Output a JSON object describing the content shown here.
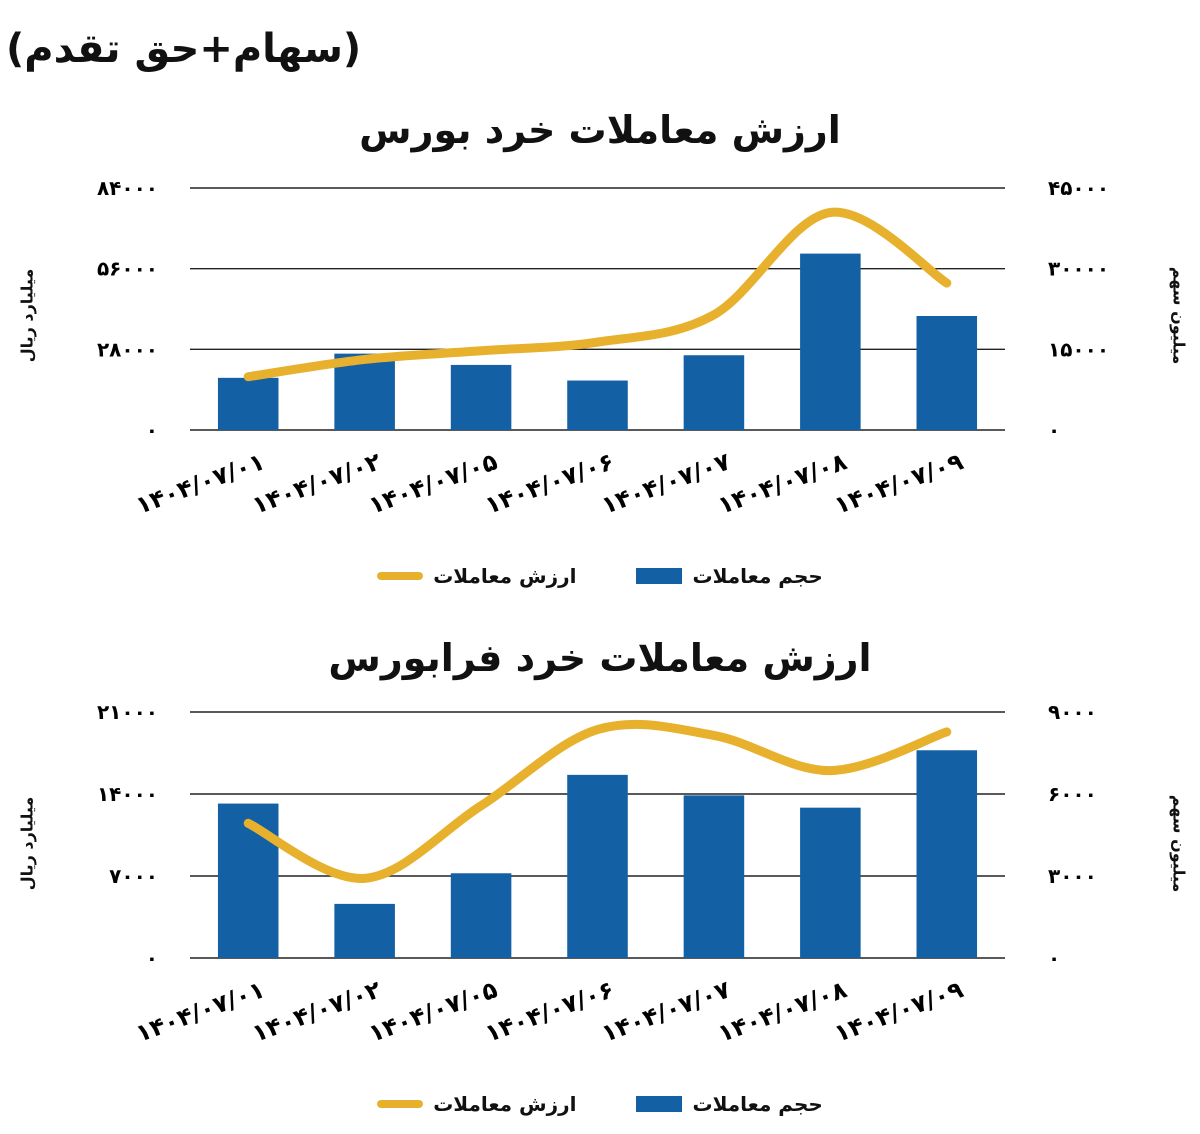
{
  "header": {
    "note": "(سهام+حق تقدم)"
  },
  "legend": {
    "bar": "حجم معاملات",
    "line": "ارزش معاملات"
  },
  "chart_data": [
    {
      "type": "bar",
      "title": "ارزش معاملات خرد بورس",
      "categories": [
        "۱۴۰۴/۰۷/۰۱",
        "۱۴۰۴/۰۷/۰۲",
        "۱۴۰۴/۰۷/۰۵",
        "۱۴۰۴/۰۷/۰۶",
        "۱۴۰۴/۰۷/۰۷",
        "۱۴۰۴/۰۷/۰۸",
        "۱۴۰۴/۰۷/۰۹"
      ],
      "ylabel": "میلیارد ریال",
      "y2label": "میلیون سهم",
      "ylim": [
        0,
        84000
      ],
      "y2lim": [
        0,
        45000
      ],
      "yticks": [
        "۰",
        "۲۸۰۰۰",
        "۵۶۰۰۰",
        "۸۴۰۰۰"
      ],
      "y2ticks": [
        "۰",
        "۱۵۰۰۰",
        "۳۰۰۰۰",
        "۴۵۰۰۰"
      ],
      "series": [
        {
          "name": "حجم معاملات",
          "type": "bar",
          "axis": "y2",
          "color": "#1460a5",
          "values": [
            9700,
            14200,
            12100,
            9200,
            13900,
            32800,
            21200
          ]
        },
        {
          "name": "ارزش معاملات",
          "type": "line",
          "axis": "y",
          "color": "#e7b12d",
          "values": [
            18500,
            24500,
            27500,
            30500,
            40000,
            75500,
            51000
          ]
        }
      ],
      "grid": true,
      "legend_position": "bottom"
    },
    {
      "type": "bar",
      "title": "ارزش معاملات خرد فرابورس",
      "categories": [
        "۱۴۰۴/۰۷/۰۱",
        "۱۴۰۴/۰۷/۰۲",
        "۱۴۰۴/۰۷/۰۵",
        "۱۴۰۴/۰۷/۰۶",
        "۱۴۰۴/۰۷/۰۷",
        "۱۴۰۴/۰۷/۰۸",
        "۱۴۰۴/۰۷/۰۹"
      ],
      "ylabel": "میلیارد ریال",
      "y2label": "میلیون سهم",
      "ylim": [
        0,
        21000
      ],
      "y2lim": [
        0,
        9000
      ],
      "yticks": [
        "۰",
        "۷۰۰۰",
        "۱۴۰۰۰",
        "۲۱۰۰۰"
      ],
      "y2ticks": [
        "۰",
        "۳۰۰۰",
        "۶۰۰۰",
        "۹۰۰۰"
      ],
      "series": [
        {
          "name": "حجم معاملات",
          "type": "bar",
          "axis": "y2",
          "color": "#1460a5",
          "values": [
            5650,
            1980,
            3100,
            6700,
            5950,
            5500,
            7600
          ]
        },
        {
          "name": "ارزش معاملات",
          "type": "line",
          "axis": "y",
          "color": "#e7b12d",
          "values": [
            11500,
            6800,
            13000,
            19500,
            19000,
            16000,
            19300
          ]
        }
      ],
      "grid": true,
      "legend_position": "bottom"
    }
  ]
}
